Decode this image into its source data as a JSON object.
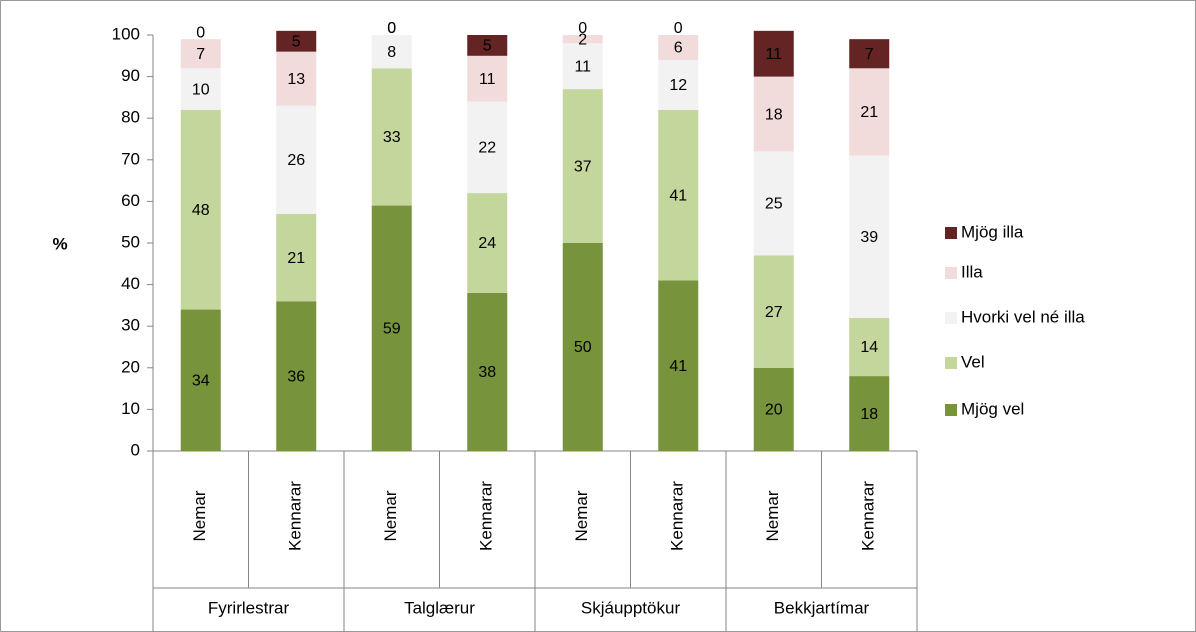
{
  "chart_data": {
    "type": "stacked_bar",
    "y_label": "%",
    "groups": [
      "Fyrirlestrar",
      "Talglærur",
      "Skjáupptökur",
      "Bekkjartímar"
    ],
    "categories": [
      "Nemar",
      "Kennarar",
      "Nemar",
      "Kennarar",
      "Nemar",
      "Kennarar",
      "Nemar",
      "Kennarar"
    ],
    "series": [
      {
        "name": "Mjög vel",
        "color": "#77933c",
        "values": [
          34,
          36,
          59,
          38,
          50,
          41,
          20,
          18
        ]
      },
      {
        "name": "Vel",
        "color": "#c3d69b",
        "values": [
          48,
          21,
          33,
          24,
          37,
          41,
          27,
          14
        ]
      },
      {
        "name": "Hvorki vel né illa",
        "color": "#f2f2f2",
        "values": [
          10,
          26,
          8,
          22,
          11,
          12,
          25,
          39
        ]
      },
      {
        "name": "Illa",
        "color": "#f2dcdb",
        "values": [
          7,
          13,
          0,
          11,
          2,
          6,
          18,
          21
        ]
      },
      {
        "name": "Mjög illa",
        "color": "#632423",
        "values": [
          0,
          5,
          0,
          5,
          0,
          0,
          11,
          7
        ]
      }
    ],
    "ylim": [
      0,
      100
    ],
    "yticks": [
      0,
      10,
      20,
      30,
      40,
      50,
      60,
      70,
      80,
      90,
      100
    ],
    "grid": false,
    "legend": "right"
  }
}
